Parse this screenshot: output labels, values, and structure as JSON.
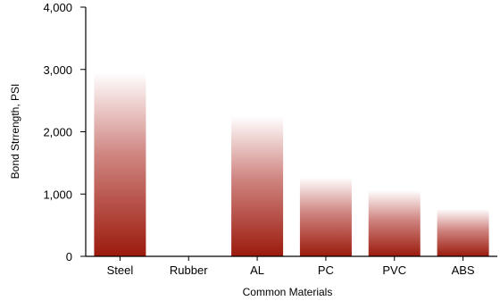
{
  "chart_data": {
    "type": "bar",
    "title": "",
    "xlabel": "Common Materials",
    "ylabel": "Bond Strrength, PSI",
    "categories": [
      "Steel",
      "Rubber",
      "AL",
      "PC",
      "PVC",
      "ABS"
    ],
    "values": [
      2950,
      0,
      2250,
      1270,
      1060,
      760
    ],
    "ylim": [
      0,
      4000
    ],
    "yticks": [
      0,
      1000,
      2000,
      3000,
      4000
    ],
    "ytick_labels": [
      "0",
      "1,000",
      "2,000",
      "3,000",
      "4,000"
    ],
    "grid": false,
    "legend": "none",
    "bar_color_bottom": "#9b1a0c",
    "bar_color_top": "#ffffff",
    "axis_color": "#000000"
  }
}
